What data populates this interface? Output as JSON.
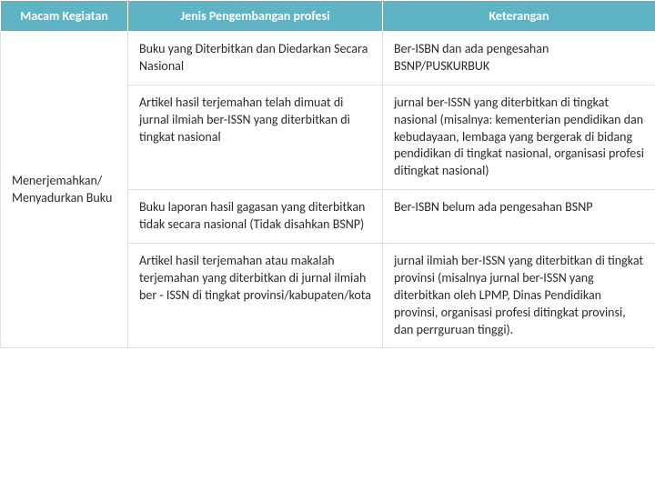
{
  "table": {
    "headers": {
      "col1": "Macam Kegiatan",
      "col2": "Jenis Pengembangan profesi",
      "col3": "Keterangan"
    },
    "category": "Menerjemahkan/ Menyadurkan Buku",
    "rows": [
      {
        "jenis": "Buku yang Diterbitkan dan Diedarkan Secara Nasional",
        "keterangan": "Ber-ISBN dan ada pengesahan BSNP/PUSKURBUK"
      },
      {
        "jenis": "Artikel hasil terjemahan telah dimuat di jurnal ilmiah ber-ISSN yang diterbitkan di tingkat nasional",
        "keterangan": "jurnal ber-ISSN yang diterbitkan di tingkat nasional (misalnya: kementerian pendidikan dan kebudayaan, lembaga yang bergerak di bidang pendidikan di tingkat nasional, organisasi profesi ditingkat nasional)"
      },
      {
        "jenis": "Buku laporan hasil gagasan yang diterbitkan tidak secara nasional (Tidak disahkan BSNP)",
        "keterangan": "Ber-ISBN belum ada pengesahan BSNP"
      },
      {
        "jenis": "Artikel hasil terjemahan atau makalah terjemahan yang diterbitkan di jurnal ilmiah ber - ISSN di tingkat provinsi/kabupaten/kota",
        "keterangan": "jurnal ilmiah ber-ISSN yang diterbitkan di tingkat provinsi (misalnya jurnal ber-ISSN yang diterbitkan oleh LPMP, Dinas Pendidikan provinsi, organisasi profesi ditingkat provinsi, dan perrguruan tinggi)."
      }
    ],
    "header_bg": "#5eb3c4",
    "header_fg": "#ffffff",
    "cell_border": "#e0e0e0",
    "font_size": 14
  }
}
